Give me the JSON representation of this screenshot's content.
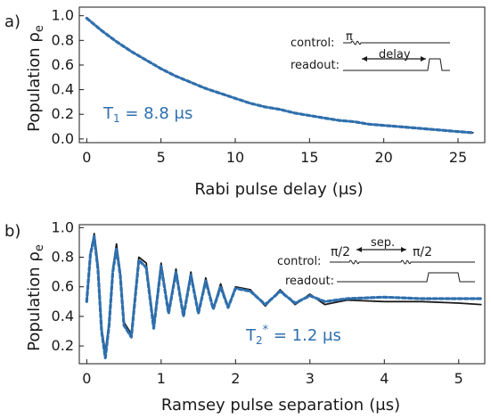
{
  "chart_data": [
    {
      "type": "line",
      "panel_label": "a)",
      "xlabel": "Rabi pulse delay",
      "xunit": "(μs)",
      "ylabel_main": "Population ρ",
      "ylabel_sub": "e",
      "xlim": [
        -0.5,
        26.8
      ],
      "ylim": [
        -0.03,
        1.07
      ],
      "xticks": [
        0,
        5,
        10,
        15,
        20,
        25
      ],
      "yticks": [
        "0.0",
        "0.2",
        "0.4",
        "0.6",
        "0.8",
        "1.0"
      ],
      "annotation_main": "T",
      "annotation_sub": "1",
      "annotation_rest": " = 8.8 μs",
      "inset": {
        "control_label": "control:",
        "readout_label": "readout:",
        "pulse_label": "π",
        "delay_label": "delay"
      },
      "series": [
        {
          "style": "data",
          "color": "#1a1a1a",
          "x": [
            0,
            1,
            2,
            3,
            4,
            5,
            6,
            7,
            8,
            9,
            10,
            11,
            12,
            13,
            14,
            15,
            16,
            17,
            18,
            19,
            20,
            21,
            22,
            23,
            24,
            25,
            26
          ],
          "y": [
            0.98,
            0.88,
            0.79,
            0.71,
            0.64,
            0.57,
            0.51,
            0.46,
            0.41,
            0.37,
            0.33,
            0.29,
            0.26,
            0.24,
            0.21,
            0.19,
            0.17,
            0.15,
            0.14,
            0.12,
            0.11,
            0.1,
            0.09,
            0.08,
            0.07,
            0.06,
            0.05
          ]
        },
        {
          "style": "fit",
          "color": "#2f6fad",
          "x": [
            0,
            1,
            2,
            3,
            4,
            5,
            6,
            7,
            8,
            9,
            10,
            11,
            12,
            13,
            14,
            15,
            16,
            17,
            18,
            19,
            20,
            21,
            22,
            23,
            24,
            25,
            26
          ],
          "y": [
            0.98,
            0.88,
            0.79,
            0.71,
            0.64,
            0.57,
            0.51,
            0.46,
            0.41,
            0.37,
            0.33,
            0.29,
            0.26,
            0.24,
            0.21,
            0.19,
            0.17,
            0.15,
            0.14,
            0.12,
            0.11,
            0.1,
            0.09,
            0.08,
            0.07,
            0.06,
            0.05
          ]
        }
      ]
    },
    {
      "type": "line",
      "panel_label": "b)",
      "xlabel": "Ramsey pulse separation",
      "xunit": "(μs)",
      "ylabel_main": "Population ρ",
      "ylabel_sub": "e",
      "xlim": [
        -0.1,
        5.35
      ],
      "ylim": [
        0.08,
        1.02
      ],
      "xticks": [
        0,
        1,
        2,
        3,
        4,
        5
      ],
      "yticks": [
        "0.2",
        "0.4",
        "0.6",
        "0.8",
        "1.0"
      ],
      "annotation_main": "T",
      "annotation_sub": "2",
      "annotation_sup": "*",
      "annotation_rest": " = 1.2 μs",
      "inset": {
        "control_label": "control:",
        "readout_label": "readout:",
        "pulse_label_1": "π/2",
        "pulse_label_2": "π/2",
        "sep_label": "sep."
      },
      "series": [
        {
          "style": "data",
          "color": "#1a1a1a",
          "x": [
            0.0,
            0.05,
            0.1,
            0.15,
            0.2,
            0.25,
            0.3,
            0.35,
            0.4,
            0.45,
            0.5,
            0.6,
            0.7,
            0.8,
            0.9,
            1.0,
            1.1,
            1.2,
            1.3,
            1.4,
            1.5,
            1.6,
            1.7,
            1.8,
            1.9,
            2.0,
            2.2,
            2.4,
            2.6,
            2.8,
            3.0,
            3.2,
            3.5,
            4.0,
            4.5,
            5.0,
            5.3
          ],
          "y": [
            0.5,
            0.82,
            0.96,
            0.75,
            0.32,
            0.16,
            0.35,
            0.72,
            0.89,
            0.7,
            0.36,
            0.28,
            0.8,
            0.76,
            0.33,
            0.76,
            0.43,
            0.72,
            0.4,
            0.7,
            0.42,
            0.66,
            0.45,
            0.62,
            0.46,
            0.6,
            0.58,
            0.47,
            0.58,
            0.48,
            0.55,
            0.48,
            0.51,
            0.5,
            0.5,
            0.49,
            0.48
          ]
        },
        {
          "style": "fit",
          "color": "#2f6fad",
          "x": [
            0.0,
            0.05,
            0.1,
            0.15,
            0.2,
            0.25,
            0.3,
            0.35,
            0.4,
            0.45,
            0.5,
            0.6,
            0.7,
            0.8,
            0.9,
            1.0,
            1.1,
            1.2,
            1.3,
            1.4,
            1.5,
            1.6,
            1.7,
            1.8,
            1.9,
            2.0,
            2.2,
            2.4,
            2.6,
            2.8,
            3.0,
            3.2,
            3.5,
            4.0,
            4.5,
            5.0,
            5.3
          ],
          "y": [
            0.5,
            0.82,
            0.94,
            0.72,
            0.3,
            0.12,
            0.34,
            0.7,
            0.86,
            0.68,
            0.34,
            0.26,
            0.78,
            0.73,
            0.32,
            0.74,
            0.42,
            0.7,
            0.4,
            0.68,
            0.42,
            0.64,
            0.45,
            0.6,
            0.46,
            0.59,
            0.57,
            0.48,
            0.57,
            0.49,
            0.54,
            0.5,
            0.52,
            0.53,
            0.52,
            0.52,
            0.52
          ]
        }
      ]
    }
  ]
}
